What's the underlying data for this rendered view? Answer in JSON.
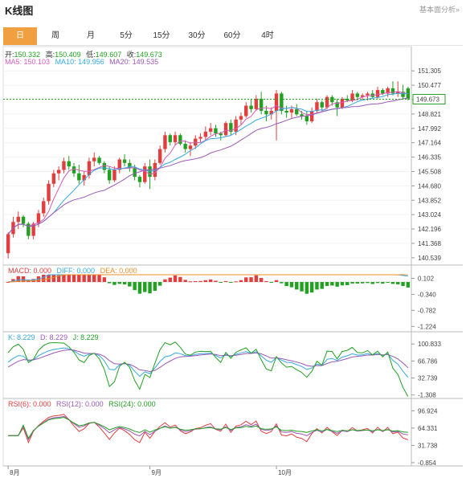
{
  "header": {
    "title": "K线图",
    "link": "基本面分析»"
  },
  "tabs": [
    {
      "label": "日",
      "active": true
    },
    {
      "label": "周"
    },
    {
      "label": "月"
    },
    {
      "label": "5分"
    },
    {
      "label": "15分"
    },
    {
      "label": "30分"
    },
    {
      "label": "60分"
    },
    {
      "label": "4时"
    }
  ],
  "ohlc": {
    "open_label": "开:",
    "open": "150.332",
    "high_label": "高:",
    "high": "150.409",
    "low_label": "低:",
    "low": "149.607",
    "close_label": "收:",
    "close": "149.673"
  },
  "ma": {
    "ma5": "MA5: 150.103",
    "ma10": "MA10: 149.956",
    "ma20": "MA20: 149.535"
  },
  "macd_info": {
    "macd": "MACD: 0.000",
    "diff": "DIFF: 0.000",
    "dea": "DEA: 0.000"
  },
  "kdj_info": {
    "k": "K: 8.229",
    "d": "D: 8.229",
    "j": "J: 8.229"
  },
  "rsi_info": {
    "r6": "RSI(6): 0.000",
    "r12": "RSI(12): 0.000",
    "r24": "RSI(24): 0.000"
  },
  "colors": {
    "up": "#e23e3e",
    "down": "#22a022",
    "ma5": "#d65ab8",
    "ma10": "#35a9e0",
    "ma20": "#9b59b6",
    "active_tab": "#f0a040"
  },
  "chart_data": {
    "type": "candlestick",
    "price_axis": {
      "ticks": [
        "151.305",
        "150.477",
        "149.649",
        "148.821",
        "147.992",
        "147.164",
        "146.335",
        "145.508",
        "144.680",
        "143.852",
        "143.024",
        "142.196",
        "141.368",
        "140.539"
      ],
      "range": [
        140.3,
        151.5
      ],
      "current": "149.673"
    },
    "macd_axis": {
      "ticks": [
        "0.102",
        "-0.340",
        "-0.782",
        "-1.224"
      ],
      "range": [
        -1.35,
        0.2
      ]
    },
    "kdj_axis": {
      "ticks": [
        "100.833",
        "66.786",
        "32.739",
        "-1.308"
      ],
      "range": [
        -5,
        106
      ]
    },
    "rsi_axis": {
      "ticks": [
        "96.924",
        "64.331",
        "31.738",
        "-0.854"
      ],
      "range": [
        -4,
        102
      ]
    },
    "x_labels": [
      {
        "label": "8月",
        "index": 0
      },
      {
        "label": "9月",
        "index": 28
      },
      {
        "label": "10月",
        "index": 53
      }
    ],
    "candles": [
      [
        140.8,
        142.0,
        140.5,
        141.9
      ],
      [
        141.9,
        142.9,
        141.7,
        142.6
      ],
      [
        142.6,
        143.2,
        142.2,
        142.9
      ],
      [
        142.9,
        143.0,
        142.3,
        142.5
      ],
      [
        142.5,
        142.6,
        141.6,
        141.8
      ],
      [
        141.8,
        142.6,
        141.6,
        142.5
      ],
      [
        142.5,
        143.3,
        142.3,
        143.1
      ],
      [
        143.1,
        144.0,
        142.9,
        143.8
      ],
      [
        143.8,
        145.0,
        143.6,
        144.8
      ],
      [
        144.8,
        145.6,
        144.6,
        145.4
      ],
      [
        145.4,
        145.8,
        145.0,
        145.6
      ],
      [
        145.6,
        146.3,
        145.4,
        146.1
      ],
      [
        146.1,
        146.4,
        145.6,
        145.8
      ],
      [
        145.8,
        146.0,
        145.2,
        145.4
      ],
      [
        145.4,
        145.9,
        144.8,
        145.0
      ],
      [
        145.0,
        145.5,
        144.7,
        145.3
      ],
      [
        145.3,
        146.3,
        145.1,
        146.1
      ],
      [
        146.1,
        146.6,
        145.8,
        146.3
      ],
      [
        146.3,
        146.4,
        145.9,
        146.0
      ],
      [
        146.0,
        146.1,
        145.4,
        145.6
      ],
      [
        145.6,
        145.8,
        144.8,
        145.0
      ],
      [
        145.0,
        145.8,
        144.9,
        145.6
      ],
      [
        145.6,
        146.3,
        145.4,
        146.2
      ],
      [
        146.2,
        146.5,
        145.8,
        146.0
      ],
      [
        146.0,
        146.2,
        145.5,
        145.7
      ],
      [
        145.7,
        145.9,
        145.0,
        145.2
      ],
      [
        145.2,
        145.3,
        144.6,
        144.9
      ],
      [
        144.9,
        146.0,
        144.8,
        145.8
      ],
      [
        145.8,
        146.2,
        144.5,
        145.2
      ],
      [
        145.2,
        146.2,
        145.0,
        146.0
      ],
      [
        146.0,
        147.0,
        145.9,
        146.8
      ],
      [
        146.8,
        147.8,
        146.6,
        147.6
      ],
      [
        147.6,
        147.7,
        147.0,
        147.2
      ],
      [
        147.2,
        147.8,
        147.0,
        147.6
      ],
      [
        147.6,
        147.7,
        147.0,
        147.1
      ],
      [
        147.1,
        147.3,
        146.6,
        146.8
      ],
      [
        146.8,
        147.2,
        146.4,
        147.0
      ],
      [
        147.0,
        147.6,
        146.8,
        147.4
      ],
      [
        147.4,
        147.7,
        147.2,
        147.5
      ],
      [
        147.5,
        148.1,
        147.3,
        147.8
      ],
      [
        147.8,
        148.3,
        147.6,
        148.0
      ],
      [
        148.0,
        148.2,
        147.5,
        147.7
      ],
      [
        147.7,
        147.8,
        147.3,
        147.6
      ],
      [
        147.6,
        148.4,
        147.5,
        148.3
      ],
      [
        148.3,
        148.5,
        147.6,
        147.8
      ],
      [
        147.8,
        148.7,
        147.6,
        148.5
      ],
      [
        148.5,
        148.9,
        148.2,
        148.7
      ],
      [
        148.7,
        149.5,
        148.6,
        149.3
      ],
      [
        149.3,
        149.7,
        148.9,
        149.1
      ],
      [
        149.1,
        149.9,
        149.0,
        149.7
      ],
      [
        149.7,
        150.1,
        148.8,
        149.0
      ],
      [
        149.0,
        149.3,
        148.4,
        148.8
      ],
      [
        148.8,
        149.2,
        148.5,
        149.0
      ],
      [
        149.0,
        150.2,
        147.3,
        150.0
      ],
      [
        150.0,
        150.1,
        148.8,
        149.0
      ],
      [
        149.0,
        149.3,
        148.6,
        148.9
      ],
      [
        148.9,
        149.3,
        148.6,
        149.1
      ],
      [
        149.1,
        149.4,
        148.7,
        148.8
      ],
      [
        148.8,
        149.0,
        148.5,
        148.7
      ],
      [
        148.7,
        149.0,
        148.2,
        148.4
      ],
      [
        148.4,
        149.2,
        148.3,
        149.0
      ],
      [
        149.0,
        149.7,
        148.9,
        149.5
      ],
      [
        149.5,
        149.6,
        149.0,
        149.2
      ],
      [
        149.2,
        149.9,
        149.1,
        149.8
      ],
      [
        149.8,
        149.9,
        149.3,
        149.5
      ],
      [
        149.5,
        149.7,
        148.7,
        149.2
      ],
      [
        149.2,
        149.8,
        149.1,
        149.7
      ],
      [
        149.7,
        149.9,
        149.5,
        149.6
      ],
      [
        149.6,
        150.2,
        149.5,
        150.0
      ],
      [
        150.0,
        150.1,
        149.6,
        149.8
      ],
      [
        149.8,
        150.0,
        149.6,
        149.9
      ],
      [
        149.9,
        150.1,
        149.6,
        150.0
      ],
      [
        150.0,
        150.2,
        149.7,
        149.8
      ],
      [
        149.8,
        150.4,
        149.7,
        150.2
      ],
      [
        150.2,
        150.3,
        149.9,
        150.0
      ],
      [
        150.0,
        150.4,
        149.8,
        150.3
      ],
      [
        150.3,
        150.7,
        149.9,
        150.0
      ],
      [
        150.0,
        150.7,
        149.8,
        150.1
      ],
      [
        150.1,
        150.5,
        149.7,
        149.8
      ],
      [
        150.3,
        150.4,
        149.6,
        149.7
      ]
    ]
  }
}
